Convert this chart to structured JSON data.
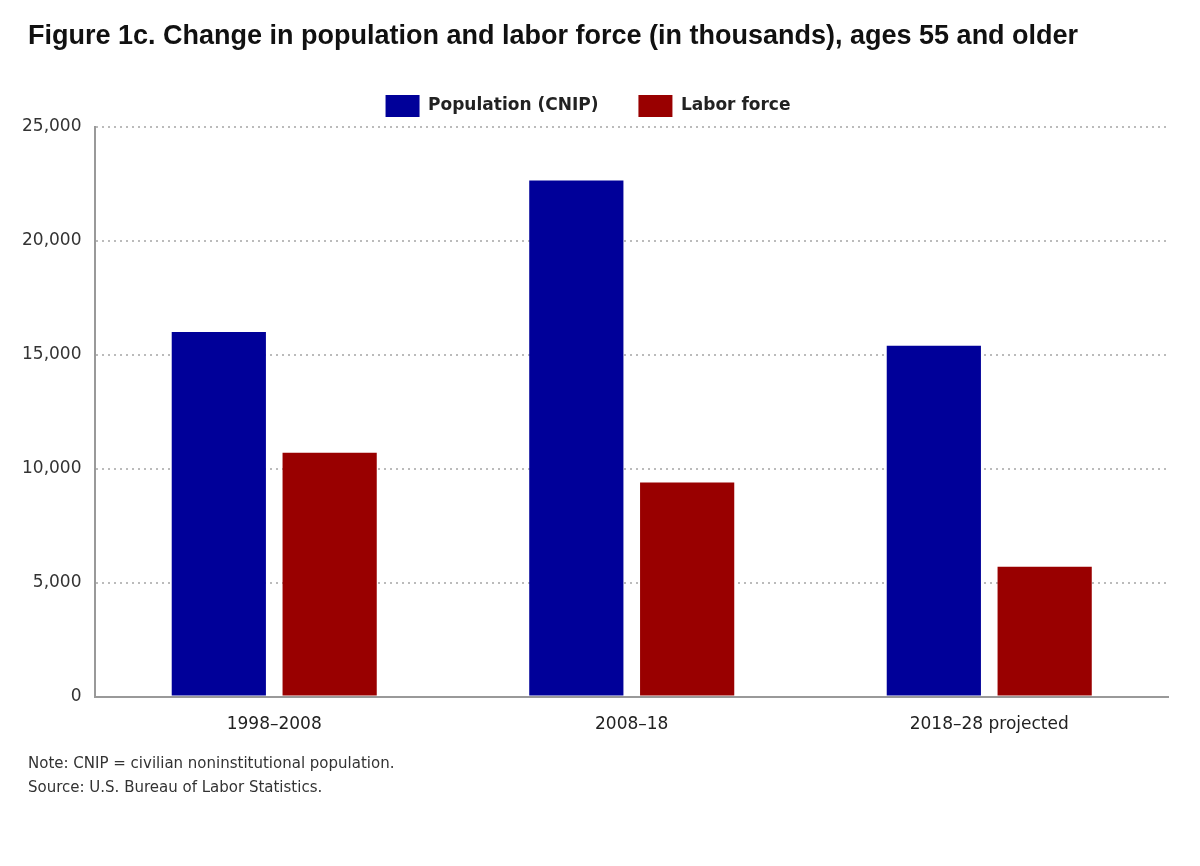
{
  "chart_data": {
    "type": "bar",
    "title": "Figure 1c. Change in population and labor force (in thousands), ages 55 and older",
    "categories": [
      "1998–2008",
      "2008–18",
      "2018–28 projected"
    ],
    "series": [
      {
        "name": "Population (CNIP)",
        "color": "#000099",
        "values": [
          16000,
          22650,
          15400
        ]
      },
      {
        "name": "Labor force",
        "color": "#990000",
        "values": [
          10700,
          9400,
          5700
        ]
      }
    ],
    "ylim": [
      0,
      25000
    ],
    "yticks": [
      {
        "value": 0,
        "label": "0"
      },
      {
        "value": 5000,
        "label": "5,000"
      },
      {
        "value": 10000,
        "label": "10,000"
      },
      {
        "value": 15000,
        "label": "15,000"
      },
      {
        "value": 20000,
        "label": "20,000"
      },
      {
        "value": 25000,
        "label": "25,000"
      }
    ],
    "grid": "y",
    "legend": "top",
    "line_style": "dotted",
    "annotations": [
      "Note: CNIP = civilian noninstitutional population.",
      "Source: U.S. Bureau of Labor Statistics."
    ]
  }
}
